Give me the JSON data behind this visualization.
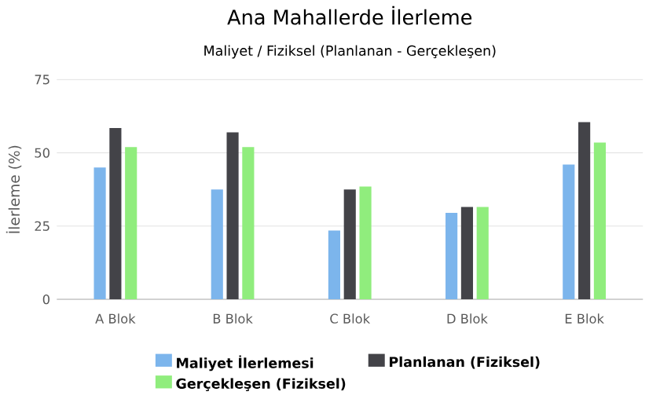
{
  "chart_data": {
    "type": "bar",
    "title": "Ana Mahallerde İlerleme",
    "subtitle": "Maliyet / Fiziksel (Planlanan - Gerçekleşen)",
    "ylabel": "İlerleme (%)",
    "categories": [
      "A Blok",
      "B Blok",
      "C Blok",
      "D Blok",
      "E Blok"
    ],
    "series": [
      {
        "name": "Maliyet İlerlemesi",
        "color": "#7cb5ec",
        "values": [
          45,
          37.5,
          23.5,
          29.5,
          46
        ]
      },
      {
        "name": "Planlanan (Fiziksel)",
        "color": "#434348",
        "values": [
          58.5,
          57,
          37.5,
          31.5,
          60.5
        ]
      },
      {
        "name": "Gerçekleşen (Fiziksel)",
        "color": "#90ed7d",
        "values": [
          52,
          52,
          38.5,
          31.5,
          53.5
        ]
      }
    ],
    "ylim": [
      0,
      75
    ],
    "yticks": [
      0,
      25,
      50,
      75
    ],
    "grid": "y",
    "legend": "bottom"
  }
}
